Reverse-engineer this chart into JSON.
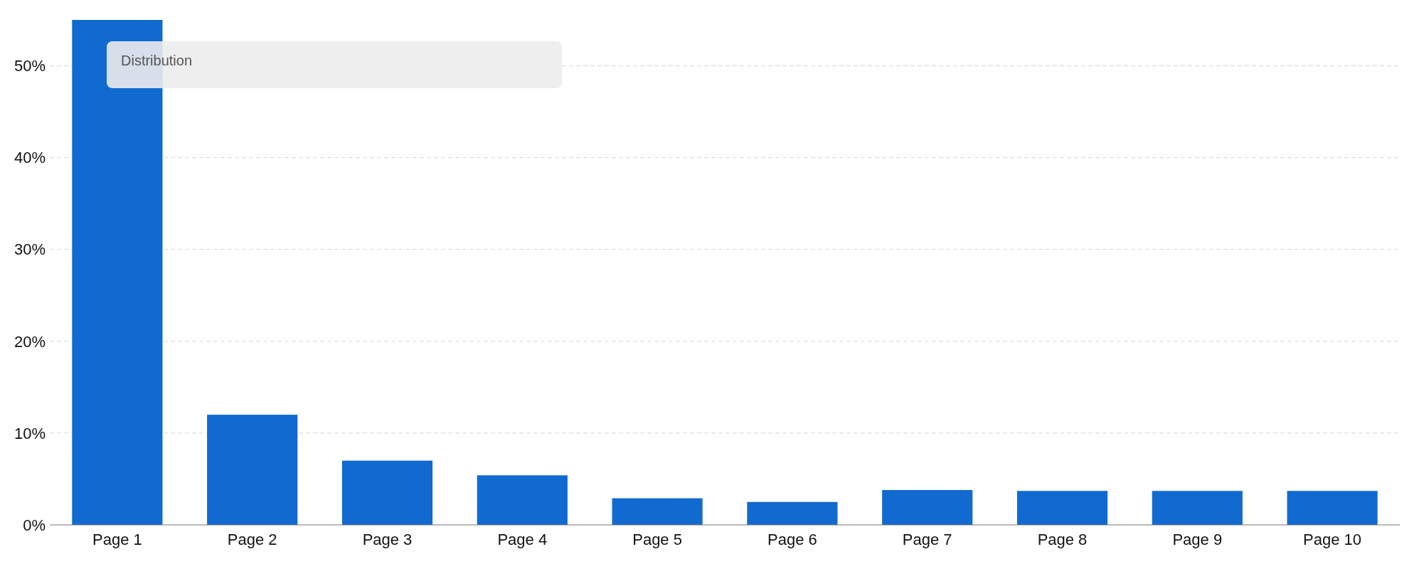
{
  "chart_data": {
    "type": "bar",
    "annotations": [
      "Distribution"
    ],
    "categories": [
      "Page 1",
      "Page 2",
      "Page 3",
      "Page 4",
      "Page 5",
      "Page 6",
      "Page 7",
      "Page 8",
      "Page 9",
      "Page 10"
    ],
    "values": [
      55,
      12,
      7,
      5.4,
      2.9,
      2.5,
      3.8,
      3.7,
      3.7,
      3.7
    ],
    "color": "#116acf",
    "ylim": [
      0,
      55
    ],
    "yticks": [
      {
        "value": 0,
        "label": "0%"
      },
      {
        "value": 10,
        "label": "10%"
      },
      {
        "value": 20,
        "label": "20%"
      },
      {
        "value": 30,
        "label": "30%"
      },
      {
        "value": 40,
        "label": "40%"
      },
      {
        "value": 50,
        "label": "50%"
      }
    ],
    "grid": "y"
  }
}
